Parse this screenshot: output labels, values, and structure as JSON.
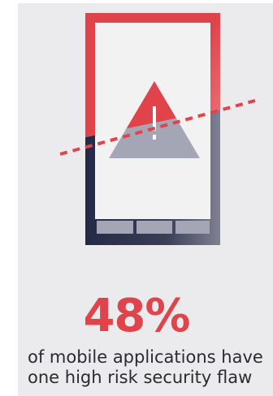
{
  "infographic": {
    "statistic": "48%",
    "caption_line_1": "of mobile applications have",
    "caption_line_2": "one high risk security flaw",
    "icons": [
      "smartphone-icon",
      "warning-triangle-icon",
      "dashed-line"
    ]
  },
  "colors": {
    "accent": "#e0444a",
    "phone_dark": "#242a45",
    "panel_bg": "#ebebed",
    "screen": "#f2f2f2",
    "text": "#2a2a33"
  }
}
